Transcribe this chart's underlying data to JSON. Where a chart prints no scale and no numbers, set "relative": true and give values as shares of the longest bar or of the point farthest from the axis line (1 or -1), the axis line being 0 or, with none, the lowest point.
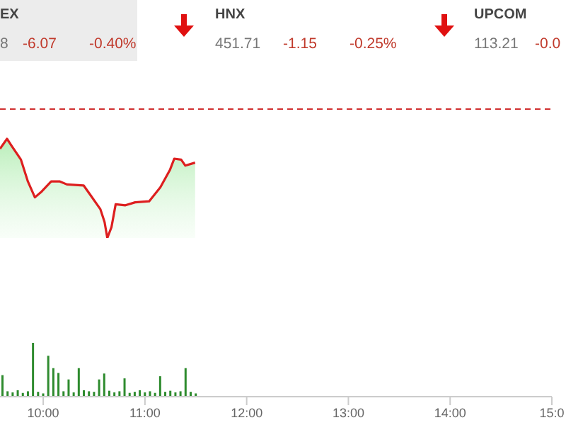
{
  "chart_data": [
    {
      "type": "other",
      "annotations": [
        "EX",
        "8",
        "-6.07",
        "-0.40%",
        "HNX",
        "451.71",
        "-1.15",
        "-0.25%",
        "UPCOM",
        "113.21",
        "-0.0"
      ]
    },
    {
      "type": "area",
      "relative": true,
      "xlim": [
        9.575,
        15
      ],
      "tick_labels": false,
      "ref_lines": [
        {
          "axis": "y",
          "value": 1.3,
          "color": "#d03030",
          "line_style": "dashed"
        }
      ],
      "series": [
        {
          "color": "#dd1f1f",
          "x": [
            9.575,
            9.644,
            9.689,
            9.781,
            9.849,
            9.918,
            9.986,
            10.078,
            10.164,
            10.233,
            10.397,
            10.466,
            10.562,
            10.603,
            10.63,
            10.671,
            10.712,
            10.808,
            10.904,
            11.041,
            11.151,
            11.247,
            11.288,
            11.356,
            11.397,
            11.493
          ],
          "values": [
            0.9,
            1,
            0.93,
            0.79,
            0.57,
            0.41,
            0.47,
            0.57,
            0.57,
            0.54,
            0.53,
            0.43,
            0.29,
            0.16,
            0,
            0.11,
            0.34,
            0.33,
            0.36,
            0.37,
            0.51,
            0.69,
            0.8,
            0.79,
            0.73,
            0.76
          ]
        }
      ]
    },
    {
      "type": "bar",
      "relative": true,
      "xlim": [
        9.575,
        15
      ],
      "tick_labels": "x",
      "xticks": [
        {
          "value": 10,
          "label": "10:00"
        },
        {
          "value": 11,
          "label": "11:00"
        },
        {
          "value": 12,
          "label": "12:00"
        },
        {
          "value": 13,
          "label": "13:00"
        },
        {
          "value": 14,
          "label": "14:00"
        },
        {
          "value": 15,
          "label": "15:0"
        }
      ],
      "series": [
        {
          "color": "#2e8b2e",
          "x": [
            9.6,
            9.65,
            9.7,
            9.75,
            9.8,
            9.85,
            9.9,
            9.95,
            10,
            10.05,
            10.1,
            10.15,
            10.2,
            10.25,
            10.3,
            10.35,
            10.4,
            10.45,
            10.5,
            10.55,
            10.6,
            10.65,
            10.7,
            10.75,
            10.8,
            10.85,
            10.9,
            10.95,
            11,
            11.05,
            11.1,
            11.15,
            11.2,
            11.25,
            11.3,
            11.35,
            11.4,
            11.45,
            11.5
          ],
          "values": [
            0.4,
            0.1,
            0.08,
            0.12,
            0.07,
            0.1,
            1,
            0.09,
            0.06,
            0.76,
            0.53,
            0.44,
            0.1,
            0.32,
            0.08,
            0.53,
            0.12,
            0.1,
            0.09,
            0.32,
            0.43,
            0.11,
            0.08,
            0.1,
            0.34,
            0.07,
            0.09,
            0.12,
            0.08,
            0.1,
            0.07,
            0.38,
            0.09,
            0.11,
            0.08,
            0.1,
            0.53,
            0.09,
            0.06
          ]
        }
      ]
    }
  ]
}
